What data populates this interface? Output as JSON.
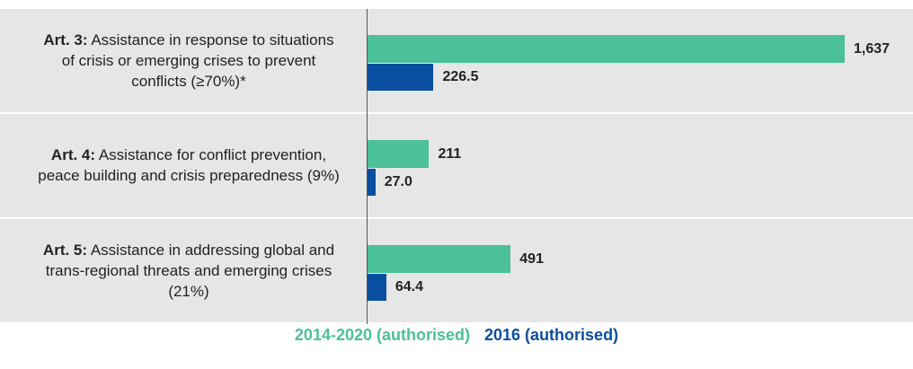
{
  "chart_data": {
    "type": "bar",
    "orientation": "horizontal",
    "categories": [
      "Art. 3: Assistance in response to situations of crisis or emerging crises to prevent conflicts (≥70%)*",
      "Art. 4: Assistance for conflict prevention, peace building and crisis preparedness (9%)",
      "Art. 5: Assistance in addressing global and trans-regional threats and emerging crises (21%)"
    ],
    "series": [
      {
        "name": "2014-2020 (authorised)",
        "color": "#4cc09b",
        "values": [
          1637,
          211,
          491
        ],
        "value_labels": [
          "1,637",
          "211",
          "491"
        ]
      },
      {
        "name": "2016 (authorised)",
        "color": "#0a4f9f",
        "values": [
          226.5,
          27.0,
          64.4
        ],
        "value_labels": [
          "226.5",
          "27.0",
          "64.4"
        ]
      }
    ],
    "legend": "bottom"
  }
}
